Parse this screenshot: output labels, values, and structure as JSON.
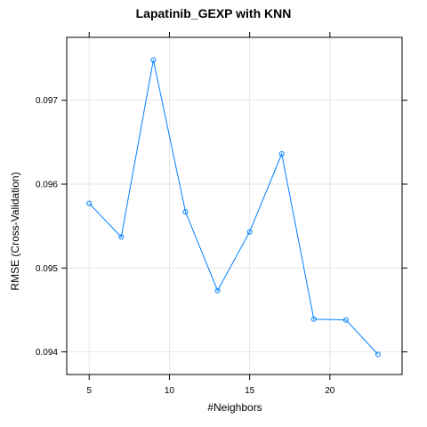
{
  "chart_data": {
    "type": "line",
    "title": "Lapatinib_GEXP with KNN",
    "xlabel": "#Neighbors",
    "ylabel": "RMSE (Cross-Validation)",
    "x": [
      5,
      7,
      9,
      11,
      13,
      15,
      17,
      19,
      21,
      23
    ],
    "y": [
      0.09577,
      0.09537,
      0.09748,
      0.09567,
      0.09473,
      0.09543,
      0.09636,
      0.09439,
      0.09438,
      0.09397
    ],
    "xlim": [
      3.6,
      24.5
    ],
    "ylim": [
      0.09373,
      0.09775
    ],
    "xticks": [
      5,
      10,
      15,
      20
    ],
    "yticks": [
      0.094,
      0.095,
      0.096,
      0.097
    ],
    "xtick_labels": [
      "5",
      "10",
      "15",
      "20"
    ],
    "ytick_labels": [
      "0.094",
      "0.095",
      "0.096",
      "0.097"
    ],
    "grid": true,
    "line_color": "#0080ff",
    "grid_color": "#e6e6e6"
  }
}
